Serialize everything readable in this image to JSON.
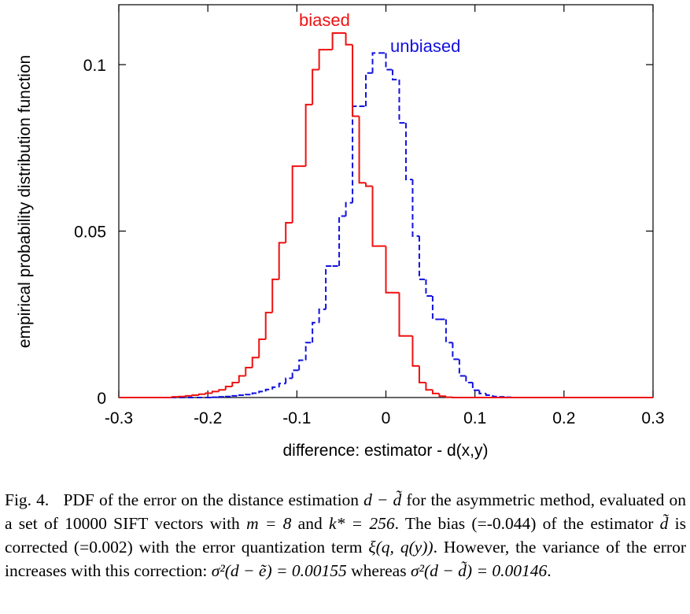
{
  "chart_data": {
    "type": "line",
    "style": "step histogram",
    "title": "",
    "xlabel": "difference: estimator - d(x,y)",
    "ylabel": "empirical probability distribution function",
    "xlim": [
      -0.3,
      0.3
    ],
    "ylim": [
      0,
      0.118
    ],
    "x_ticks": [
      -0.3,
      -0.2,
      -0.1,
      0,
      0.1,
      0.2,
      0.3
    ],
    "x_tick_labels": [
      "-0.3",
      "-0.2",
      "-0.1",
      "0",
      "0.1",
      "0.2",
      "0.3"
    ],
    "y_ticks": [
      0,
      0.05,
      0.1
    ],
    "y_tick_labels": [
      "0",
      "0.05",
      "0.1"
    ],
    "bin_width": 0.0075,
    "series": [
      {
        "name": "biased",
        "color": "#ee1111",
        "dash": "solid",
        "bin_starts": [
          -0.2475,
          -0.24,
          -0.2325,
          -0.225,
          -0.2175,
          -0.21,
          -0.2025,
          -0.195,
          -0.1875,
          -0.18,
          -0.1725,
          -0.165,
          -0.1575,
          -0.15,
          -0.1425,
          -0.135,
          -0.1275,
          -0.12,
          -0.1125,
          -0.105,
          -0.0975,
          -0.09,
          -0.0825,
          -0.075,
          -0.0675,
          -0.06,
          -0.0525,
          -0.045,
          -0.0375,
          -0.03,
          -0.0225,
          -0.015,
          -0.0075,
          0,
          0.0075,
          0.015,
          0.0225,
          0.03,
          0.0375,
          0.045,
          0.0525,
          0.06,
          0.0675,
          0.075
        ],
        "values": [
          0,
          0.0002,
          0.0003,
          0.0005,
          0.0007,
          0.001,
          0.0013,
          0.0018,
          0.0023,
          0.0033,
          0.0045,
          0.0065,
          0.009,
          0.012,
          0.0175,
          0.0255,
          0.0355,
          0.0465,
          0.0525,
          0.0695,
          0.0695,
          0.088,
          0.0985,
          0.1045,
          0.1045,
          0.1095,
          0.1095,
          0.106,
          0.0845,
          0.0645,
          0.0635,
          0.0455,
          0.0455,
          0.0315,
          0.0315,
          0.0185,
          0.0185,
          0.0095,
          0.0045,
          0.0023,
          0.0012,
          0.0004,
          0.0001,
          0
        ]
      },
      {
        "name": "unbiased",
        "color": "#1111dd",
        "dash": "dashed",
        "bin_starts": [
          -0.2025,
          -0.195,
          -0.1875,
          -0.18,
          -0.1725,
          -0.165,
          -0.1575,
          -0.15,
          -0.1425,
          -0.135,
          -0.1275,
          -0.12,
          -0.1125,
          -0.105,
          -0.0975,
          -0.09,
          -0.0825,
          -0.075,
          -0.0675,
          -0.06,
          -0.0525,
          -0.045,
          -0.0375,
          -0.03,
          -0.0225,
          -0.015,
          -0.0075,
          0,
          0.0075,
          0.015,
          0.0225,
          0.03,
          0.0375,
          0.045,
          0.0525,
          0.06,
          0.0675,
          0.075,
          0.0825,
          0.09,
          0.0975,
          0.105,
          0.1125,
          0.12,
          0.1275,
          0.135,
          0.1425
        ],
        "values": [
          0,
          0.0001,
          0.0002,
          0.0003,
          0.0005,
          0.0007,
          0.0009,
          0.0013,
          0.0018,
          0.0024,
          0.0031,
          0.0042,
          0.0058,
          0.0082,
          0.0112,
          0.0165,
          0.0225,
          0.0265,
          0.0395,
          0.0395,
          0.0545,
          0.0585,
          0.0875,
          0.0875,
          0.0975,
          0.1035,
          0.1035,
          0.0985,
          0.0955,
          0.0825,
          0.0655,
          0.0485,
          0.0355,
          0.0305,
          0.0235,
          0.0235,
          0.0165,
          0.0115,
          0.0065,
          0.0045,
          0.0022,
          0.0012,
          0.0007,
          0.0003,
          0.0002,
          0.0001,
          0
        ]
      }
    ],
    "legend": [
      {
        "label": "biased",
        "color": "#ee1111",
        "placement": "top, left of peak"
      },
      {
        "label": "unbiased",
        "color": "#1111dd",
        "placement": "top, right of peak"
      }
    ]
  },
  "caption": {
    "figure_label": "Fig. 4.",
    "text_1": "PDF of the error on the distance estimation",
    "math_1": "d − d̃",
    "text_2": "for the asymmetric method, evaluated on a set of 10000 SIFT vectors with",
    "math_2": "m = 8",
    "text_3": "and",
    "math_3": "k* = 256",
    "text_4": ". The bias (=-0.044) of the estimator",
    "math_4": "d̃",
    "text_5": "is corrected (=0.002) with the error quantization term",
    "math_5": "ξ(q, q(y))",
    "text_6": ". However, the variance of the error increases with this correction:",
    "math_6": "σ²(d − ẽ) = 0.00155",
    "text_7": "whereas",
    "math_7": "σ²(d − d̃) = 0.00146",
    "text_8": "."
  }
}
